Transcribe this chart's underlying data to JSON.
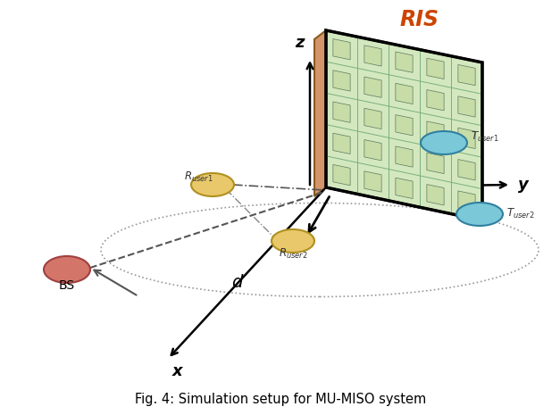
{
  "title": "Fig. 4: Simulation setup for MU-MISO system",
  "background_color": "#ffffff",
  "ris_label": "RIS",
  "bs_label": "BS",
  "d_label": "d",
  "x_label": "x",
  "y_label": "y",
  "z_label": "z",
  "r_user1_label": "$R_{user1}$",
  "r_user2_label": "$R_{user2}$",
  "t_user1_label": "$T_{user1}$",
  "t_user2_label": "$T_{user2}$",
  "ris_face_color": "#d4e8c0",
  "ris_cell_color": "#c0d8a8",
  "ris_side_color": "#d4956a",
  "ris_grid_color": "#7ab07a",
  "bs_color": "#d4756a",
  "r_user_color": "#e8c86a",
  "t_user_color": "#7ac8d8",
  "axis_color": "#000000",
  "ellipse_color": "#999999",
  "dash_dot_color": "#555555",
  "dashed_color": "#555555"
}
